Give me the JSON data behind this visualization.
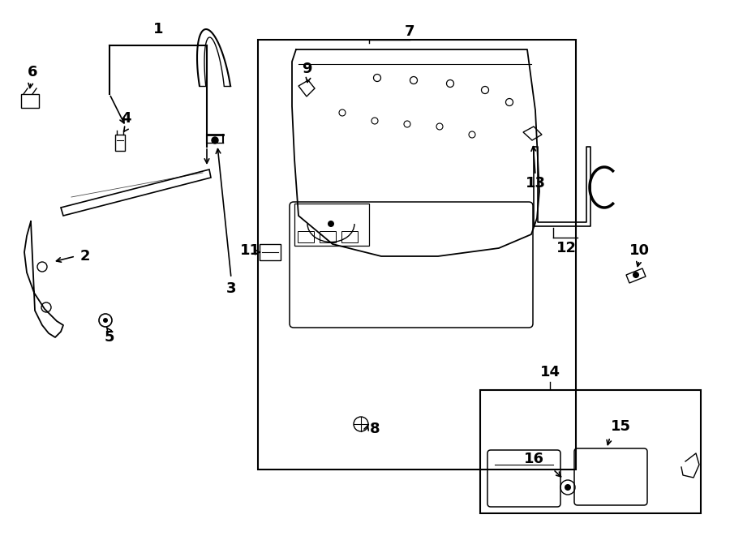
{
  "bg_color": "#ffffff",
  "fig_width": 9.0,
  "fig_height": 6.61,
  "line_color": "#000000",
  "font_size": 13
}
